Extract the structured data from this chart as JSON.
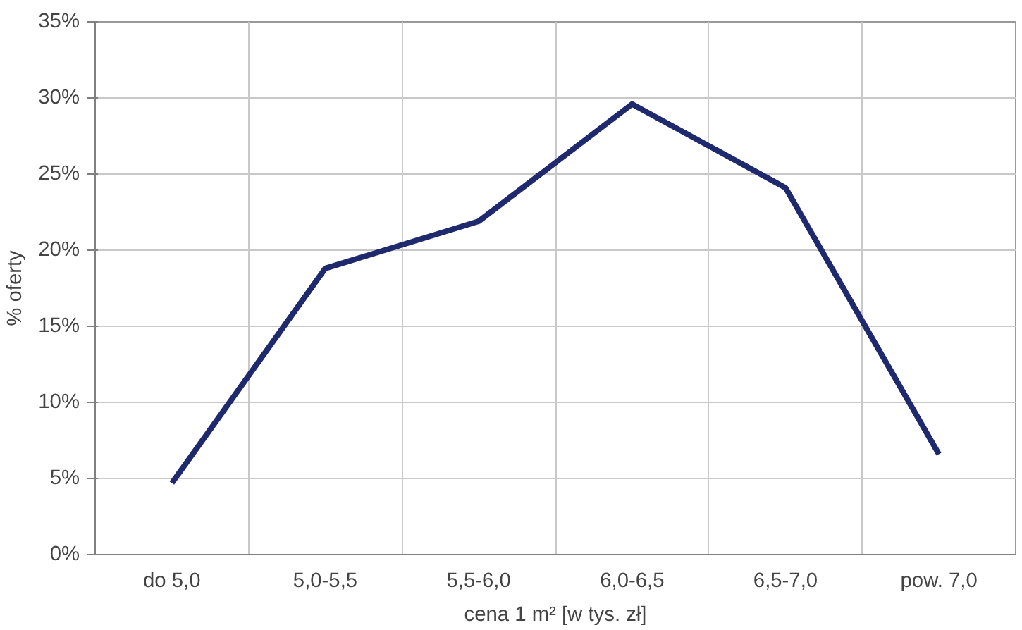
{
  "chart_data": {
    "type": "line",
    "xlabel": "cena 1 m² [w tys. zł]",
    "ylabel": "% oferty",
    "categories": [
      "do 5,0",
      "5,0-5,5",
      "5,5-6,0",
      "6,0-6,5",
      "6,5-7,0",
      "pow. 7,0"
    ],
    "series": [
      {
        "color": "#1f2a6e",
        "values": [
          4.7,
          18.8,
          21.9,
          29.6,
          24.1,
          6.6
        ]
      }
    ],
    "ylim": [
      0,
      35
    ],
    "yticks": [
      {
        "value": 0,
        "label": "0%"
      },
      {
        "value": 5,
        "label": "5%"
      },
      {
        "value": 10,
        "label": "10%"
      },
      {
        "value": 15,
        "label": "15%"
      },
      {
        "value": 20,
        "label": "20%"
      },
      {
        "value": 25,
        "label": "25%"
      },
      {
        "value": 30,
        "label": "30%"
      },
      {
        "value": 35,
        "label": "35%"
      }
    ],
    "grid": true,
    "marker": "none",
    "line_style": "solid"
  }
}
